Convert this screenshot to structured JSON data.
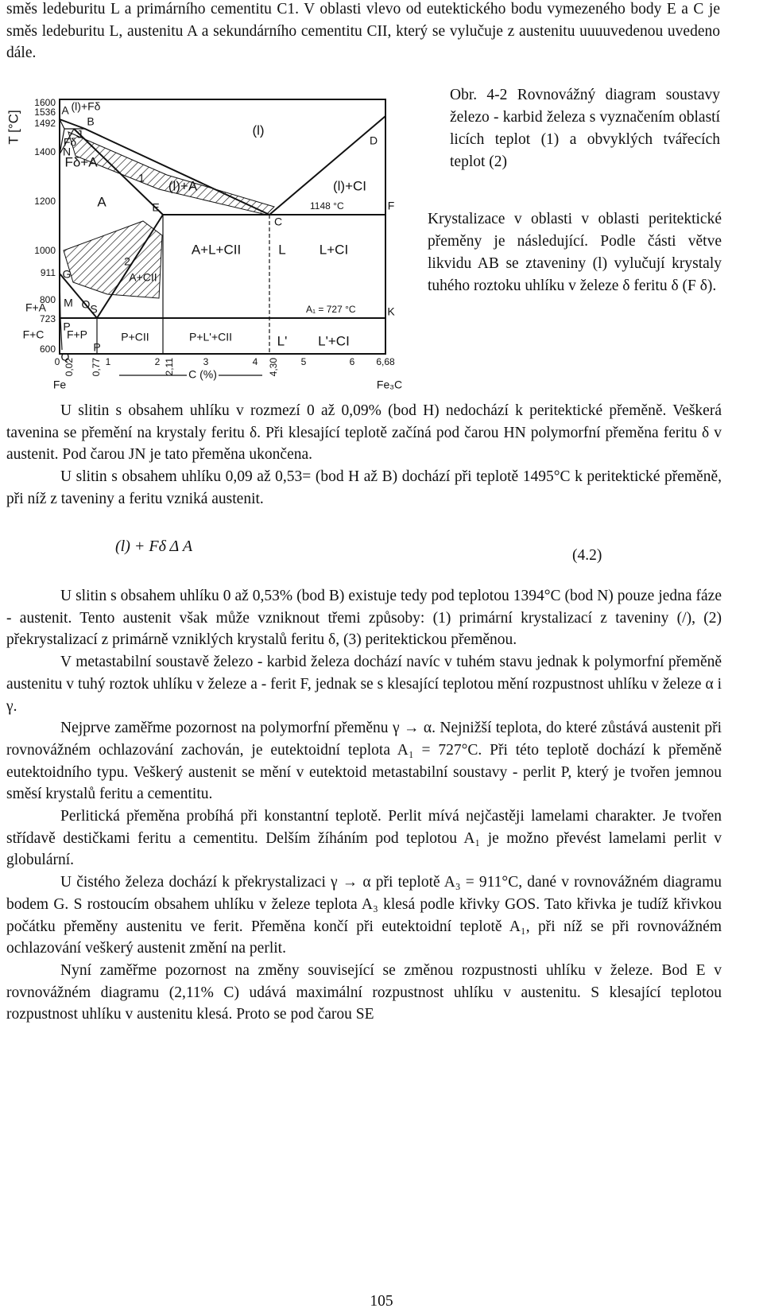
{
  "intro": "směs ledeburitu L a primárního cementitu C1. V oblasti vlevo od eutektického bodu vymezeného body E a C je směs ledeburitu L, austenitu A a sekundárního cementitu CII, který se vylučuje z austenitu uuuuvedenou uvedeno dále.",
  "figure": {
    "caption": "Obr. 4-2 Rovnovážný diagram soustavy železo - karbid železa s vyznačením oblastí licích teplot (1) a obvyklých tvářecích teplot (2)",
    "y_axis_label": "T [°C]",
    "temperatures": [
      "1600",
      "1536",
      "1492",
      "1400",
      "1200",
      "1000",
      "911",
      "800",
      "723",
      "600"
    ],
    "carbon": [
      "0",
      "0,02",
      "0,77",
      "1",
      "2",
      "2,11",
      "3",
      "4",
      "4,30",
      "5",
      "6",
      "6,68"
    ],
    "x_axis_label": "C (%)",
    "ends": [
      "Fe",
      "Fe₃C"
    ],
    "regions": [
      "(l)",
      "(l)+Fδ",
      "(l)+A",
      "(l)+CI",
      "Fδ+A",
      "A",
      "A+L+CII",
      "L",
      "L+CI",
      "A+CII",
      "F+A",
      "F+C",
      "F+P",
      "P",
      "P+CII",
      "P+L'+CII",
      "L'",
      "L'+CI",
      "Fδ"
    ],
    "points": [
      "A",
      "B",
      "D",
      "E",
      "C",
      "F",
      "G",
      "S",
      "K",
      "P",
      "Q",
      "M",
      "O",
      "N",
      "J",
      "1",
      "2"
    ],
    "annotations": [
      "1148 °C",
      "A₁ = 727 °C"
    ]
  },
  "side_text": "Krystalizace v oblasti v oblasti peritektické přeměny je následující. Podle části větve likvidu AB se ztaveniny (l) vylučují krystaly tuhého roztoku uhlíku v železe δ feritu δ (F δ).",
  "paragraphs_a": [
    "U slitin s obsahem uhlíku v rozmezí 0 až 0,09% (bod H) nedochází k peritektické přeměně. Veškerá tavenina se přemění na krystaly feritu δ. Při klesající teplotě začíná pod čarou HN polymorfní přeměna feritu δ v austenit. Pod čarou JN je tato přeměna ukončena.",
    "U slitin s obsahem uhlíku 0,09 až 0,53= (bod H až B) dochází při teplotě 1495°C k peritektické přeměně, při níž z taveniny a feritu vzniká austenit."
  ],
  "equation": {
    "formula": "(l) + Fδ Δ A",
    "number": "(4.2)"
  },
  "paragraphs_b": [
    "U slitin s obsahem uhlíku 0 až 0,53% (bod B) existuje tedy pod teplotou 1394°C (bod N) pouze jedna fáze - austenit. Tento austenit však může vzniknout třemi způsoby: (1) primární krystalizací z taveniny (/), (2) překrystalizací z primárně vzniklých krystalů feritu δ, (3) peritektickou přeměnou.",
    "V metastabilní soustavě železo - karbid železa dochází navíc v tuhém stavu jednak k polymorfní přeměně austenitu v tuhý roztok uhlíku v železe a - ferit F, jednak se s klesající teplotou mění rozpustnost uhlíku v železe α i γ.",
    "Nejprve zaměřme pozornost na polymorfní přeměnu γ → α. Nejnižší teplota, do které zůstává austenit při rovnovážném ochlazování zachován, je eutektoidní teplota A₁ = 727°C. Při této teplotě dochází k přeměně eutektoidního typu. Veškerý austenit se mění v eutektoid metastabilní soustavy - perlit P, který je tvořen jemnou směsí krystalů feritu a cementitu.",
    "Perlitická přeměna probíhá při konstantní teplotě. Perlit mívá nejčastěji lamelami charakter. Je tvořen střídavě destičkami feritu a cementitu. Delším žíháním pod teplotou A₁ je možno převést lamelami perlit v globulární.",
    "U čistého železa dochází k překrystalizaci γ → α při teplotě A₃ = 911°C, dané v rovnovážném diagramu bodem G. S rostoucím obsahem uhlíku v železe teplota A₃ klesá podle křivky GOS. Tato křivka je tudíž křivkou počátku přeměny austenitu ve ferit. Přeměna končí při eutektoidní teplotě A₁, při níž se při rovnovážném ochlazování veškerý austenit změní na perlit.",
    "Nyní zaměřme pozornost na změny související se změnou rozpustnosti uhlíku v železe. Bod E v rovnovážném diagramu (2,11% C) udává maximální rozpustnost uhlíku v austenitu. S klesající teplotou rozpustnost uhlíku v austenitu klesá. Proto se pod čarou SE"
  ],
  "page_number": "105"
}
